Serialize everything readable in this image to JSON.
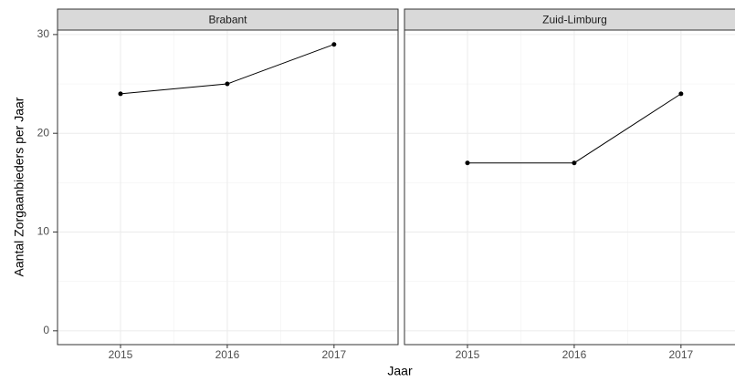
{
  "chart_data": {
    "type": "line",
    "x": [
      2015,
      2016,
      2017
    ],
    "series": [
      {
        "name": "Brabant",
        "color": "#000000",
        "values": [
          24,
          25,
          29
        ]
      },
      {
        "name": "Zuid-Limburg",
        "color": "#000000",
        "values": [
          17,
          17,
          24
        ]
      }
    ],
    "xlabel": "Jaar",
    "ylabel": "Aantal Zorgaanbieders per Jaar",
    "xlim": [
      2014.41,
      2017.6
    ],
    "xticks": [
      2015,
      2016,
      2017
    ],
    "ylim": [
      -1.4,
      30.45
    ],
    "yticks": [
      0,
      10,
      20,
      30
    ],
    "grid": true,
    "facets": true
  }
}
